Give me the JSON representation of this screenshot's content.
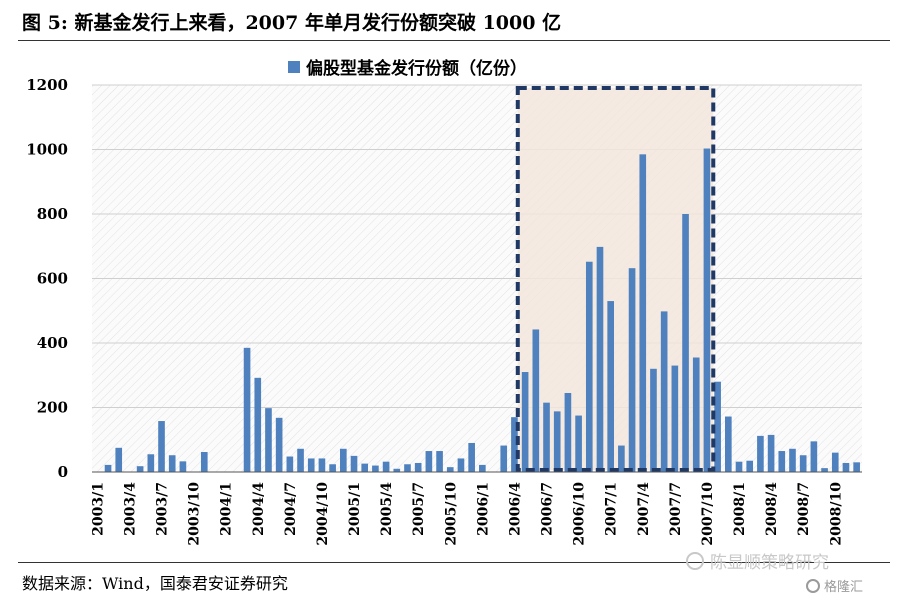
{
  "figure": {
    "title": "图 5:  新基金发行上来看，2007 年单月发行份额突破 1000 亿",
    "source": "数据来源：Wind，国泰君安证券研究",
    "watermark": "陈显顺策略研究",
    "logo": "格隆汇"
  },
  "chart_data": {
    "type": "bar",
    "legend": [
      "偏股型基金发行份额（亿份）"
    ],
    "legend_placement": "top-center",
    "grid": true,
    "ylim": [
      0,
      1200
    ],
    "yticks": [
      "0",
      "200",
      "400",
      "600",
      "800",
      "1000",
      "1200"
    ],
    "xtick_labels": [
      "2003/1",
      "2003/4",
      "2003/7",
      "2003/10",
      "2004/1",
      "2004/4",
      "2004/7",
      "2004/10",
      "2005/1",
      "2005/4",
      "2005/7",
      "2005/10",
      "2006/1",
      "2006/4",
      "2006/7",
      "2006/10",
      "2007/1",
      "2007/4",
      "2007/7",
      "2007/10",
      "2008/1",
      "2008/4",
      "2008/7",
      "2008/10"
    ],
    "highlight_range": [
      "2006/5",
      "2007/10"
    ],
    "categories": [
      "2003/1",
      "2003/2",
      "2003/3",
      "2003/4",
      "2003/5",
      "2003/6",
      "2003/7",
      "2003/8",
      "2003/9",
      "2003/10",
      "2003/11",
      "2003/12",
      "2004/1",
      "2004/2",
      "2004/3",
      "2004/4",
      "2004/5",
      "2004/6",
      "2004/7",
      "2004/8",
      "2004/9",
      "2004/10",
      "2004/11",
      "2004/12",
      "2005/1",
      "2005/2",
      "2005/3",
      "2005/4",
      "2005/5",
      "2005/6",
      "2005/7",
      "2005/8",
      "2005/9",
      "2005/10",
      "2005/11",
      "2005/12",
      "2006/1",
      "2006/2",
      "2006/3",
      "2006/4",
      "2006/5",
      "2006/6",
      "2006/7",
      "2006/8",
      "2006/9",
      "2006/10",
      "2006/11",
      "2006/12",
      "2007/1",
      "2007/2",
      "2007/3",
      "2007/4",
      "2007/5",
      "2007/6",
      "2007/7",
      "2007/8",
      "2007/9",
      "2007/10",
      "2007/11",
      "2007/12",
      "2008/1",
      "2008/2",
      "2008/3",
      "2008/4",
      "2008/5",
      "2008/6",
      "2008/7",
      "2008/8",
      "2008/9",
      "2008/10",
      "2008/11",
      "2008/12"
    ],
    "series": [
      {
        "name": "偏股型基金发行份额（亿份）",
        "color": "#4e81bd",
        "values": [
          0,
          22,
          75,
          0,
          18,
          55,
          158,
          52,
          33,
          0,
          62,
          0,
          0,
          0,
          385,
          292,
          198,
          168,
          48,
          72,
          42,
          42,
          24,
          72,
          50,
          26,
          20,
          32,
          10,
          24,
          28,
          65,
          65,
          15,
          42,
          90,
          22,
          0,
          82,
          170,
          310,
          442,
          215,
          188,
          245,
          175,
          652,
          698,
          530,
          82,
          632,
          985,
          320,
          498,
          330,
          800,
          355,
          1003,
          280,
          172,
          32,
          35,
          112,
          115,
          65,
          72,
          52,
          95,
          12,
          60,
          28,
          30
        ]
      }
    ]
  }
}
